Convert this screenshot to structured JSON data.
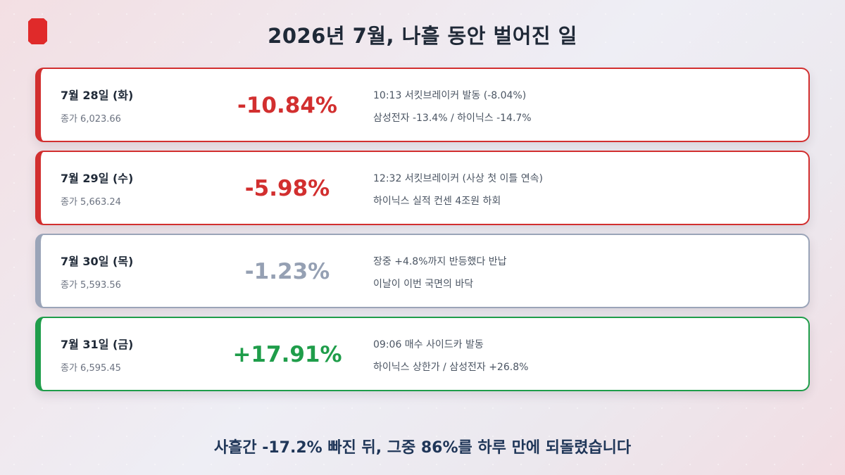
{
  "title": "2026년 7월, 나흘 동안 벌어진 일",
  "days": [
    {
      "date": "7월 28일 (화)",
      "close": "종가 6,023.66",
      "change": "-10.84%",
      "tone": "red",
      "note1": "10:13 서킷브레이커 발동 (-8.04%)",
      "note2": "삼성전자 -13.4% / 하이닉스 -14.7%"
    },
    {
      "date": "7월 29일 (수)",
      "close": "종가 5,663.24",
      "change": "-5.98%",
      "tone": "red",
      "note1": "12:32 서킷브레이커 (사상 첫 이틀 연속)",
      "note2": "하이닉스 실적 컨센 4조원 하회"
    },
    {
      "date": "7월 30일 (목)",
      "close": "종가 5,593.56",
      "change": "-1.23%",
      "tone": "gray",
      "note1": "장중 +4.8%까지 반등했다 반납",
      "note2": "이날이 이번 국면의 바닥"
    },
    {
      "date": "7월 31일 (금)",
      "close": "종가 6,595.45",
      "change": "+17.91%",
      "tone": "green",
      "note1": "09:06 매수 사이드카 발동",
      "note2": "하이닉스 상한가 / 삼성전자 +26.8%"
    }
  ],
  "summary": "사흘간 -17.2% 빠진 뒤, 그중 86%를 하루 만에 되돌렸습니다",
  "colors": {
    "red": "#d22f2f",
    "gray": "#95a0b3",
    "green": "#1f9d4a",
    "logo": "#e02a2a"
  }
}
